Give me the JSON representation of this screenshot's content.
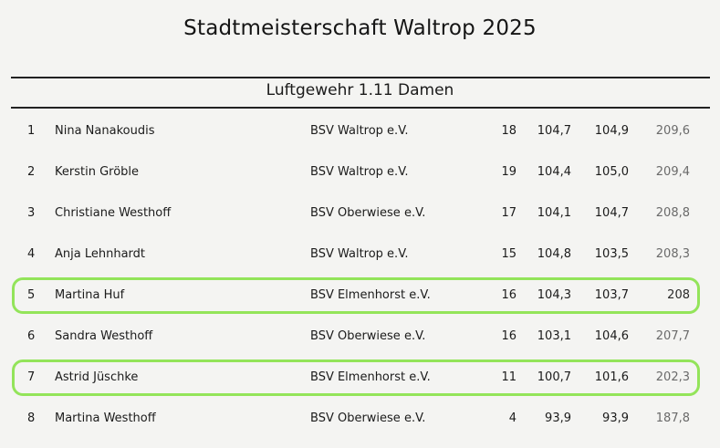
{
  "document": {
    "title": "Stadtmeisterschaft Waltrop 2025",
    "subtitle": "Luftgewehr 1.11 Damen"
  },
  "results": [
    {
      "rank": "1",
      "name": "Nina Nanakoudis",
      "club": "BSV Waltrop e.V.",
      "age": "18",
      "s1": "104,7",
      "s2": "104,9",
      "total": "209,6"
    },
    {
      "rank": "2",
      "name": "Kerstin Gröble",
      "club": "BSV Waltrop e.V.",
      "age": "19",
      "s1": "104,4",
      "s2": "105,0",
      "total": "209,4"
    },
    {
      "rank": "3",
      "name": "Christiane Westhoff",
      "club": "BSV Oberwiese e.V.",
      "age": "17",
      "s1": "104,1",
      "s2": "104,7",
      "total": "208,8"
    },
    {
      "rank": "4",
      "name": "Anja Lehnhardt",
      "club": "BSV Waltrop e.V.",
      "age": "15",
      "s1": "104,8",
      "s2": "103,5",
      "total": "208,3"
    },
    {
      "rank": "5",
      "name": "Martina Huf",
      "club": "BSV Elmenhorst e.V.",
      "age": "16",
      "s1": "104,3",
      "s2": "103,7",
      "total": "208"
    },
    {
      "rank": "6",
      "name": "Sandra Westhoff",
      "club": "BSV Oberwiese e.V.",
      "age": "16",
      "s1": "103,1",
      "s2": "104,6",
      "total": "207,7"
    },
    {
      "rank": "7",
      "name": "Astrid Jüschke",
      "club": "BSV Elmenhorst e.V.",
      "age": "11",
      "s1": "100,7",
      "s2": "101,6",
      "total": "202,3"
    },
    {
      "rank": "8",
      "name": "Martina Westhoff",
      "club": "BSV Oberwiese e.V.",
      "age": "4",
      "s1": "93,9",
      "s2": "93,9",
      "total": "187,8"
    }
  ],
  "highlighted_ranks": [
    "5",
    "7"
  ],
  "highlight_color": "#93e45a"
}
